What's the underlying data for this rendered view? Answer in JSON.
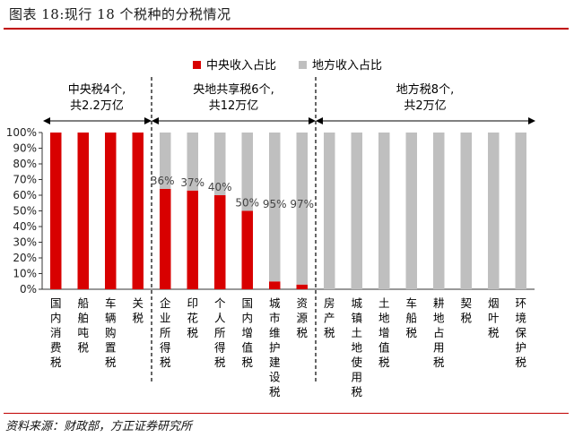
{
  "figure": {
    "title": "图表 18:现行 18 个税种的分税情况",
    "source": "资料来源：财政部，方正证券研究所"
  },
  "colors": {
    "central": "#d80000",
    "local": "#bfbfbf"
  },
  "chart_data": {
    "type": "bar",
    "stacked": true,
    "ylim": [
      0,
      100
    ],
    "yticks": [
      "0%",
      "10%",
      "20%",
      "30%",
      "40%",
      "50%",
      "60%",
      "70%",
      "80%",
      "90%",
      "100%"
    ],
    "legend": {
      "position": "top"
    },
    "series": [
      {
        "name": "中央收入占比",
        "values": [
          100,
          100,
          100,
          100,
          64,
          63,
          60,
          50,
          5,
          3,
          0,
          0,
          0,
          0,
          0,
          0,
          0,
          0
        ]
      },
      {
        "name": "地方收入占比",
        "values": [
          0,
          0,
          0,
          0,
          36,
          37,
          40,
          50,
          95,
          97,
          100,
          100,
          100,
          100,
          100,
          100,
          100,
          100
        ]
      }
    ],
    "categories": [
      "国内消费税",
      "船舶吨税",
      "车辆购置税",
      "关税",
      "企业所得税",
      "印花税",
      "个人所得税",
      "国内增值税",
      "城市维护建设税",
      "资源税",
      "房产税",
      "城镇土地使用税",
      "土地增值税",
      "车船税",
      "耕地占用税",
      "契税",
      "烟叶税",
      "环境保护税"
    ],
    "data_labels": [
      {
        "index": 4,
        "text": "36%"
      },
      {
        "index": 5,
        "text": "37%"
      },
      {
        "index": 6,
        "text": "40%"
      },
      {
        "index": 7,
        "text": "50%"
      },
      {
        "index": 8,
        "text": "95%"
      },
      {
        "index": 9,
        "text": "97%"
      }
    ],
    "groups": [
      {
        "line1": "中央税4个,",
        "line2": "共2.2万亿",
        "from": 0,
        "to": 3
      },
      {
        "line1": "央地共享税6个,",
        "line2": "共12万亿",
        "from": 4,
        "to": 9
      },
      {
        "line1": "地方税8个,",
        "line2": "共2万亿",
        "from": 10,
        "to": 17
      }
    ]
  }
}
